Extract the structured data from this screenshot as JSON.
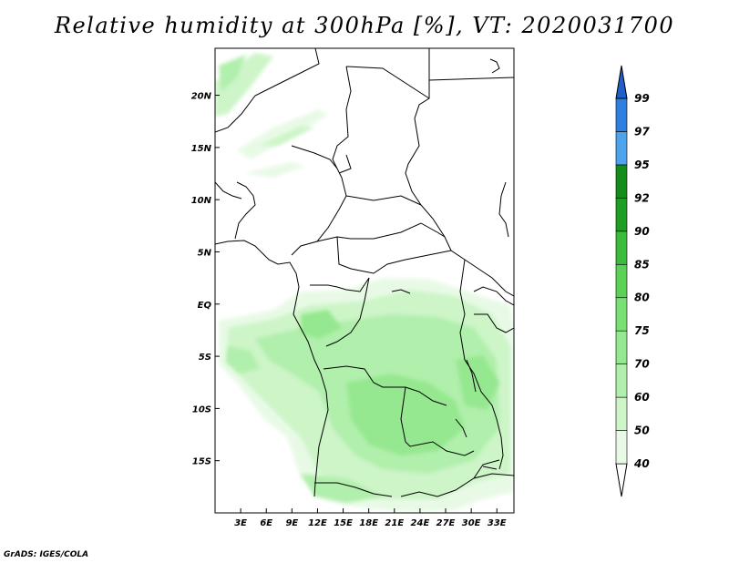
{
  "title": "Relative humidity at 300hPa [%], VT: 2020031700",
  "footer": "GrADS: IGES/COLA",
  "map": {
    "lon_range": [
      0,
      35
    ],
    "lat_range": [
      -20,
      24.5
    ],
    "x_ticks": [
      {
        "value": 3,
        "label": "3E"
      },
      {
        "value": 6,
        "label": "6E"
      },
      {
        "value": 9,
        "label": "9E"
      },
      {
        "value": 12,
        "label": "12E"
      },
      {
        "value": 15,
        "label": "15E"
      },
      {
        "value": 18,
        "label": "18E"
      },
      {
        "value": 21,
        "label": "21E"
      },
      {
        "value": 24,
        "label": "24E"
      },
      {
        "value": 27,
        "label": "27E"
      },
      {
        "value": 30,
        "label": "30E"
      },
      {
        "value": 33,
        "label": "33E"
      }
    ],
    "y_ticks": [
      {
        "value": 20,
        "label": "20N"
      },
      {
        "value": 15,
        "label": "15N"
      },
      {
        "value": 10,
        "label": "10N"
      },
      {
        "value": 5,
        "label": "5N"
      },
      {
        "value": 0,
        "label": "EQ"
      },
      {
        "value": -5,
        "label": "5S"
      },
      {
        "value": -10,
        "label": "10S"
      },
      {
        "value": -15,
        "label": "15S"
      }
    ]
  },
  "colorbar": {
    "levels": [
      "40",
      "50",
      "60",
      "70",
      "75",
      "80",
      "85",
      "90",
      "92",
      "95",
      "97",
      "99"
    ],
    "colors": [
      "#ffffff",
      "#e8fae6",
      "#cdf5c8",
      "#b1efac",
      "#95e88f",
      "#79e073",
      "#5bd256",
      "#3dbb3c",
      "#1f9e24",
      "#148c1a",
      "#4da3ec",
      "#2f7fe0",
      "#1e60c8"
    ]
  },
  "colors": {
    "humidity_shades": [
      "#e8fae6",
      "#cdf5c8",
      "#b1efac",
      "#95e88f"
    ],
    "borders": "#000000"
  }
}
